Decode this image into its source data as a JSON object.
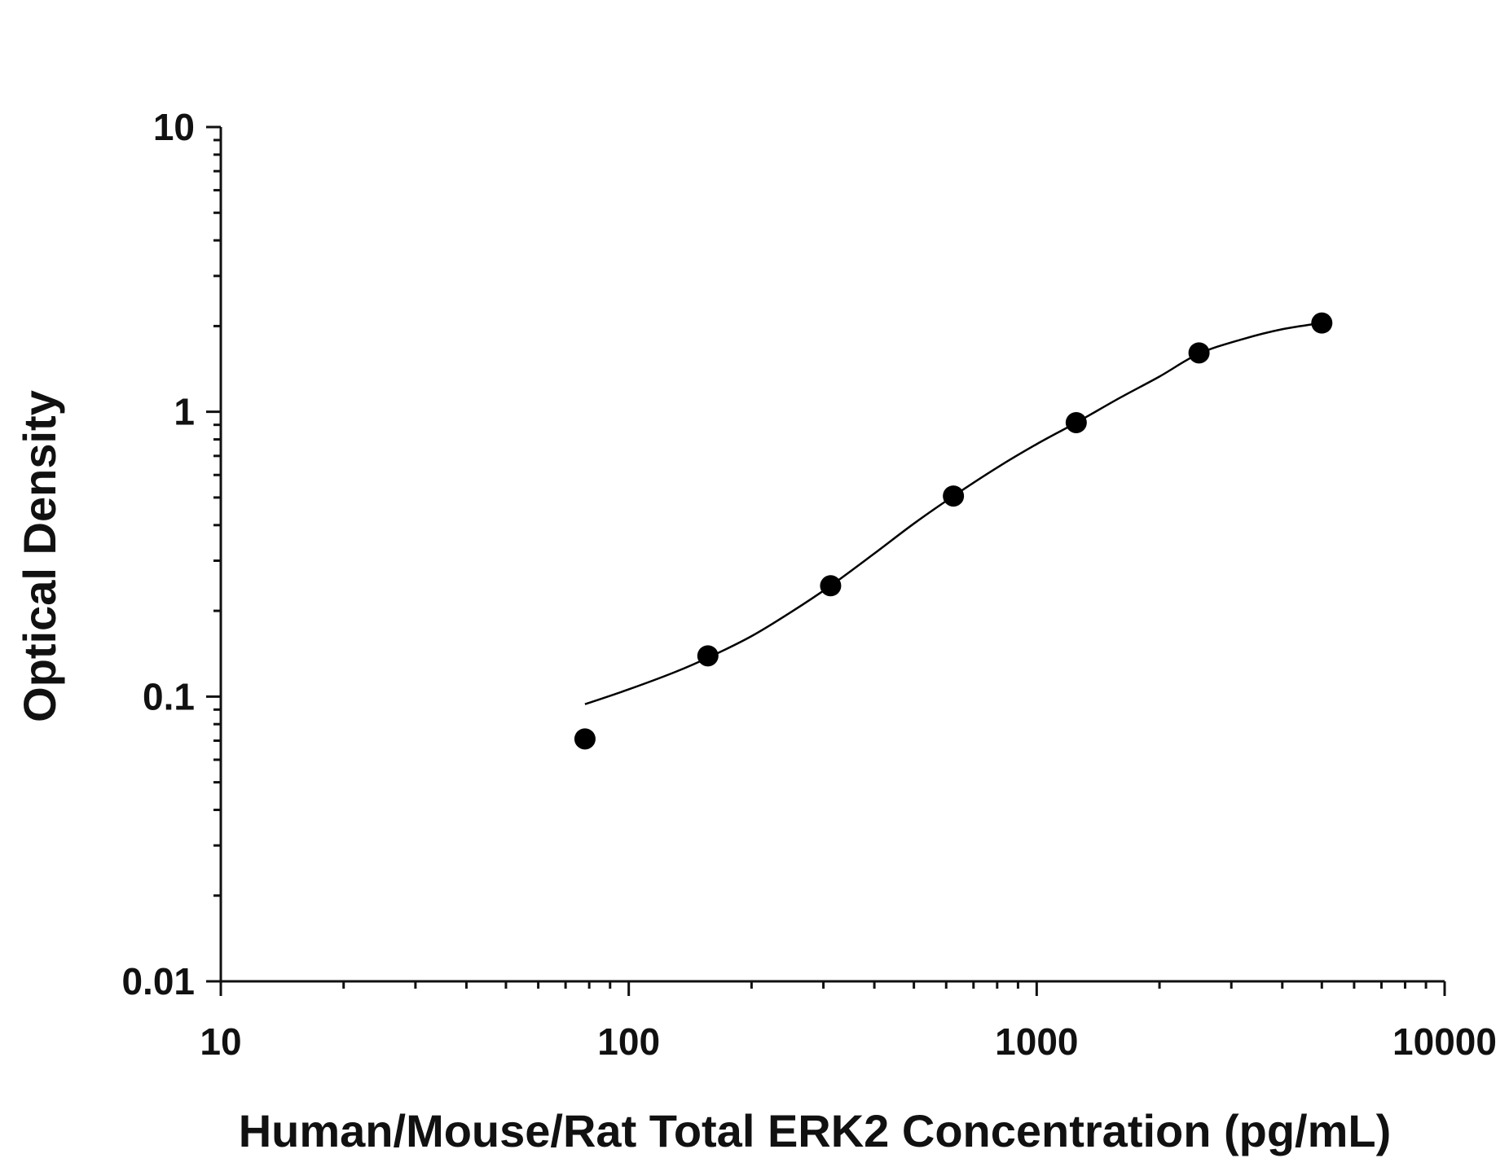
{
  "chart_data": {
    "type": "scatter",
    "title": "",
    "xlabel": "Human/Mouse/Rat Total ERK2 Concentration (pg/mL)",
    "ylabel": "Optical Density",
    "x_scale": "log",
    "y_scale": "log",
    "xlim": [
      10,
      10000
    ],
    "ylim": [
      0.01,
      10
    ],
    "x_ticks": [
      10,
      100,
      1000,
      10000
    ],
    "x_tick_labels": [
      "10",
      "100",
      "1000",
      "10000"
    ],
    "y_ticks": [
      0.01,
      0.1,
      1,
      10
    ],
    "y_tick_labels": [
      "0.01",
      "0.1",
      "1",
      "10"
    ],
    "grid": false,
    "legend": "none",
    "series": [
      {
        "x": [
          78.1,
          156.3,
          312.5,
          625,
          1250,
          2500,
          5000
        ],
        "y": [
          0.071,
          0.139,
          0.245,
          0.506,
          0.916,
          1.61,
          2.05
        ],
        "marker": "filled-circle",
        "color": "#000000"
      }
    ],
    "fit_curve": {
      "x": [
        78.1,
        100,
        130,
        160,
        200,
        250,
        312.5,
        400,
        500,
        625,
        800,
        1000,
        1250,
        1600,
        2000,
        2500,
        3200,
        4000,
        5000
      ],
      "y": [
        0.094,
        0.106,
        0.122,
        0.139,
        0.163,
        0.198,
        0.245,
        0.318,
        0.405,
        0.506,
        0.637,
        0.77,
        0.916,
        1.12,
        1.33,
        1.6,
        1.8,
        1.95,
        2.05
      ],
      "color": "#000000"
    }
  }
}
